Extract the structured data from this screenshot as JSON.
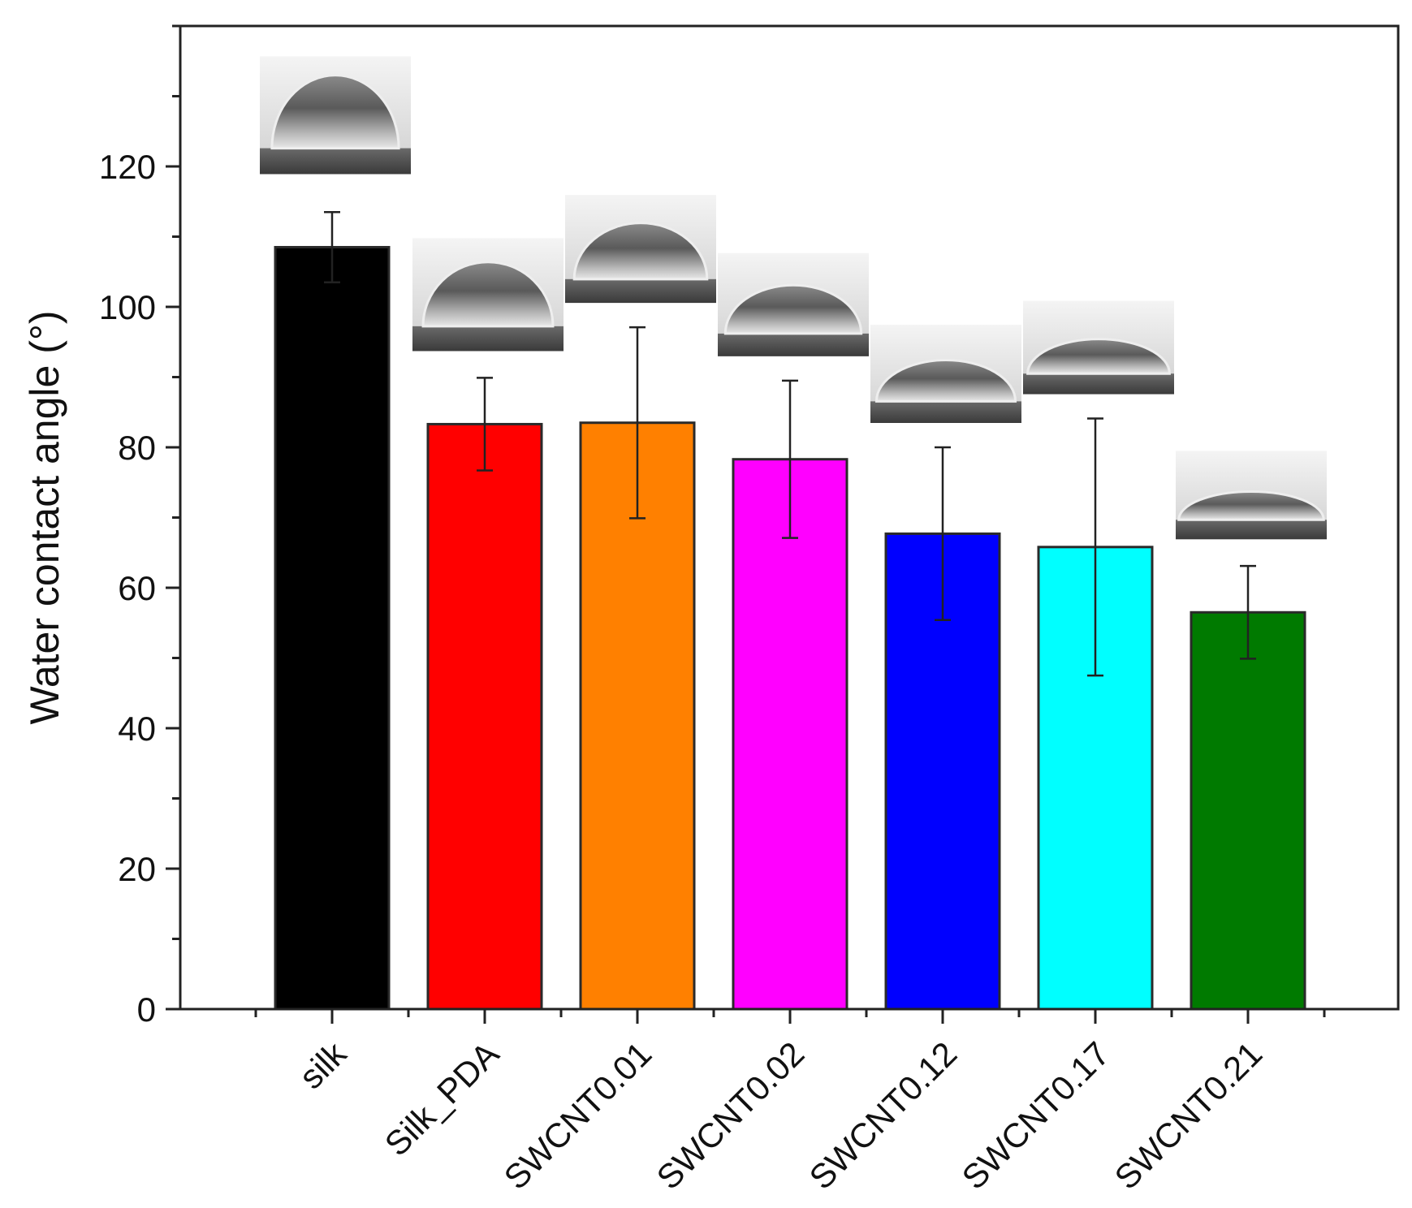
{
  "chart_data": {
    "type": "bar",
    "title": "",
    "xlabel": "",
    "ylabel": "Water contact angle (°)",
    "ylim": [
      0,
      140
    ],
    "yticks": [
      0,
      20,
      40,
      60,
      80,
      100,
      120
    ],
    "grid": false,
    "legend": "none",
    "categories": [
      "silk",
      "Silk_PDA",
      "SWCNT0.01",
      "SWCNT0.02",
      "SWCNT0.12",
      "SWCNT0.17",
      "SWCNT0.21"
    ],
    "values": [
      108.5,
      83.3,
      83.5,
      78.3,
      67.7,
      65.8,
      56.5
    ],
    "errors": [
      5.0,
      6.6,
      13.6,
      11.2,
      12.3,
      18.3,
      6.6
    ],
    "colors": [
      "#000000",
      "#ff0000",
      "#ff8000",
      "#ff00ff",
      "#0000ff",
      "#00ffff",
      "#007a00"
    ],
    "annotations": "water droplet photograph above each bar"
  }
}
